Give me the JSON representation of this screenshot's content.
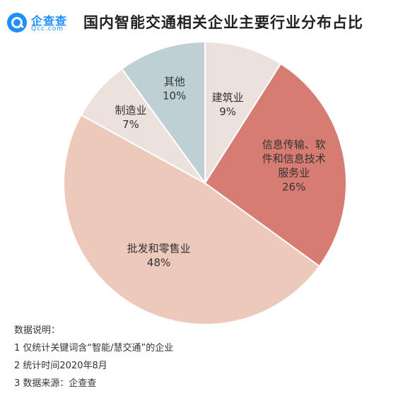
{
  "header": {
    "logo_name": "企查查",
    "logo_sub": "Qcc.com",
    "title": "国内智能交通相关企业主要行业分布占比"
  },
  "chart_data": {
    "type": "pie",
    "title": "国内智能交通相关企业主要行业分布占比",
    "unit": "%",
    "slices": [
      {
        "name": "建筑业",
        "value": 9,
        "label": "9%",
        "color": "#ede1dd"
      },
      {
        "name": "信息传输、软件和信息技术服务业",
        "label_lines": [
          "信息传输、软",
          "件和信息技术",
          "服务业"
        ],
        "value": 26,
        "label": "26%",
        "color": "#d67c72"
      },
      {
        "name": "批发和零售业",
        "value": 48,
        "label": "48%",
        "color": "#ecc9ba"
      },
      {
        "name": "制造业",
        "value": 7,
        "label": "7%",
        "color": "#ede1dd"
      },
      {
        "name": "其他",
        "value": 10,
        "label": "10%",
        "color": "#bed0d3"
      }
    ]
  },
  "notes": {
    "heading": "数据说明：",
    "items": [
      "1 仅统计关键词含“智能/慧交通”的企业",
      "2 统计时间2020年8月",
      "3 数据来源：企查查"
    ]
  }
}
